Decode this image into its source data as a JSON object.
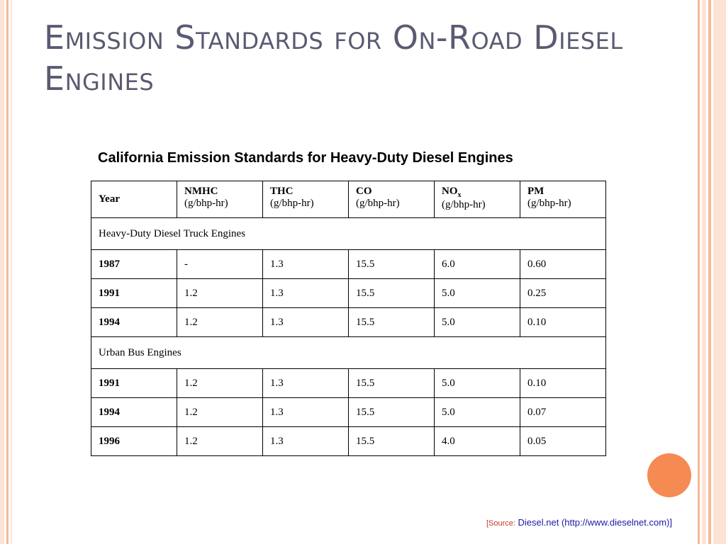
{
  "slide": {
    "title": "Emission Standards for On-Road Diesel Engines",
    "colors": {
      "title": "#5a5a72",
      "accent": "#f58a52",
      "strip_light": "#fde3d6",
      "strip_mid": "#f6b99a",
      "source_link": "#1a1aa8",
      "source_label": "#c0392b"
    }
  },
  "table": {
    "caption": "California Emission Standards for Heavy-Duty Diesel Engines",
    "year_header": "Year",
    "columns": [
      {
        "name": "NMHC",
        "unit": "(g/bhp-hr)"
      },
      {
        "name": "THC",
        "unit": "(g/bhp-hr)"
      },
      {
        "name": "CO",
        "unit": "(g/bhp-hr)"
      },
      {
        "name": "NO",
        "sub": "x",
        "unit": "(g/bhp-hr)"
      },
      {
        "name": "PM",
        "unit": "(g/bhp-hr)"
      }
    ],
    "sections": [
      {
        "label": "Heavy-Duty Diesel Truck Engines",
        "rows": [
          {
            "year": "1987",
            "values": [
              "-",
              "1.3",
              "15.5",
              "6.0",
              "0.60"
            ]
          },
          {
            "year": "1991",
            "values": [
              "1.2",
              "1.3",
              "15.5",
              "5.0",
              "0.25"
            ]
          },
          {
            "year": "1994",
            "values": [
              "1.2",
              "1.3",
              "15.5",
              "5.0",
              "0.10"
            ]
          }
        ]
      },
      {
        "label": "Urban Bus Engines",
        "rows": [
          {
            "year": "1991",
            "values": [
              "1.2",
              "1.3",
              "15.5",
              "5.0",
              "0.10"
            ]
          },
          {
            "year": "1994",
            "values": [
              "1.2",
              "1.3",
              "15.5",
              "5.0",
              "0.07"
            ]
          },
          {
            "year": "1996",
            "values": [
              "1.2",
              "1.3",
              "15.5",
              "4.0",
              "0.05"
            ]
          }
        ]
      }
    ]
  },
  "source": {
    "label": "[Source:",
    "text": " Diesel.net (http://www.dieselnet.com)]"
  }
}
